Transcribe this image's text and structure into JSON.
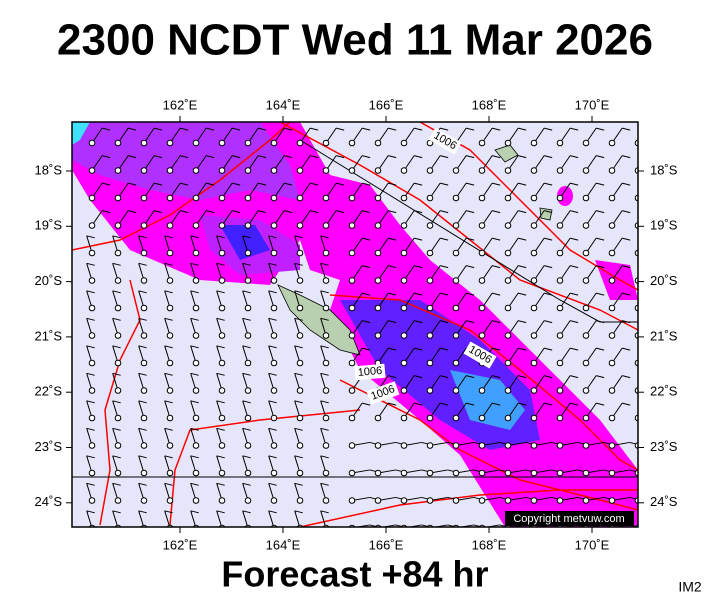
{
  "header": {
    "title": "2300 NCDT Wed 11 Mar 2026"
  },
  "map": {
    "lon_labels": [
      "162˚E",
      "164˚E",
      "166˚E",
      "168˚E",
      "170˚E"
    ],
    "lat_labels": [
      "18˚S",
      "19˚S",
      "20˚S",
      "21˚S",
      "22˚S",
      "23˚S",
      "24˚S"
    ],
    "isobar_labels": [
      "1006",
      "1006",
      "1006",
      "1006"
    ],
    "copyright": "Copyright metvuw.com"
  },
  "footer": {
    "forecast": "Forecast +84 hr",
    "code": "IM2"
  }
}
